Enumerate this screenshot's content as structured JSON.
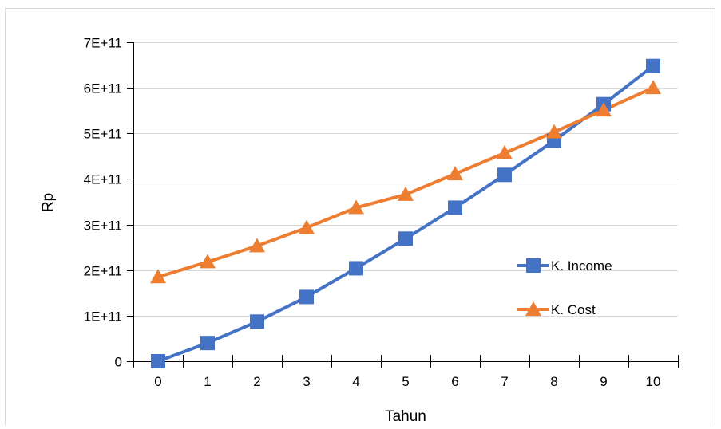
{
  "chart_data": {
    "type": "line",
    "xlabel": "Tahun",
    "ylabel": "Rp",
    "categories": [
      "0",
      "1",
      "2",
      "3",
      "4",
      "5",
      "6",
      "7",
      "8",
      "9",
      "10"
    ],
    "ylim": [
      0,
      700000000000
    ],
    "y_ticks": [
      {
        "value": 0,
        "label": "0"
      },
      {
        "value": 100000000000,
        "label": "1E+11"
      },
      {
        "value": 200000000000,
        "label": "2E+11"
      },
      {
        "value": 300000000000,
        "label": "3E+11"
      },
      {
        "value": 400000000000,
        "label": "4E+11"
      },
      {
        "value": 500000000000,
        "label": "5E+11"
      },
      {
        "value": 600000000000,
        "label": "6E+11"
      },
      {
        "value": 700000000000,
        "label": "7E+11"
      }
    ],
    "grid": {
      "horizontal": true,
      "vertical": false
    },
    "legend_position": "right",
    "series": [
      {
        "name": "K. Income",
        "color": "#4472C4",
        "marker": "square",
        "values": [
          0,
          40000000000,
          87000000000,
          141000000000,
          204000000000,
          269000000000,
          337000000000,
          409000000000,
          484000000000,
          564000000000,
          648000000000
        ]
      },
      {
        "name": "K. Cost",
        "color": "#ED7D31",
        "marker": "triangle",
        "values": [
          185000000000,
          218000000000,
          253000000000,
          293000000000,
          337000000000,
          366000000000,
          411000000000,
          457000000000,
          503000000000,
          551000000000,
          600000000000
        ]
      }
    ]
  }
}
